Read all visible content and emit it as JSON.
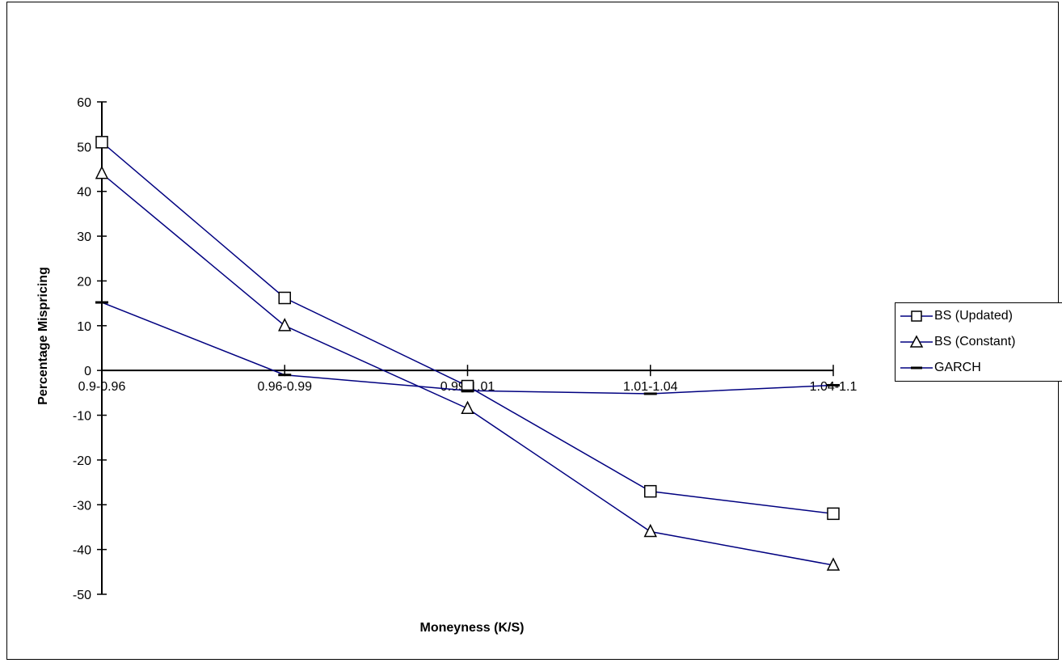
{
  "chart_data": {
    "type": "line",
    "title": "",
    "xlabel": "Moneyness (K/S)",
    "ylabel": "Percentage Mispricing",
    "categories": [
      "0.9-0.96",
      "0.96-0.99",
      "0.99-1.01",
      "1.01-1.04",
      "1.04-1.1"
    ],
    "ylim": [
      -50,
      60
    ],
    "yticks": [
      60,
      50,
      40,
      30,
      20,
      10,
      0,
      -10,
      -20,
      -30,
      -40,
      -50
    ],
    "grid": false,
    "legend_position": "right",
    "series": [
      {
        "name": "BS (Updated)",
        "marker": "square",
        "color": "#000080",
        "values": [
          51,
          16.2,
          -3.5,
          -27,
          -32
        ]
      },
      {
        "name": "BS (Constant)",
        "marker": "triangle",
        "color": "#000080",
        "values": [
          44,
          10,
          -8.5,
          -36,
          -43.5
        ]
      },
      {
        "name": "GARCH",
        "marker": "dash",
        "color": "#000080",
        "values": [
          15.2,
          -1,
          -4.5,
          -5.2,
          -3.3
        ]
      }
    ]
  }
}
